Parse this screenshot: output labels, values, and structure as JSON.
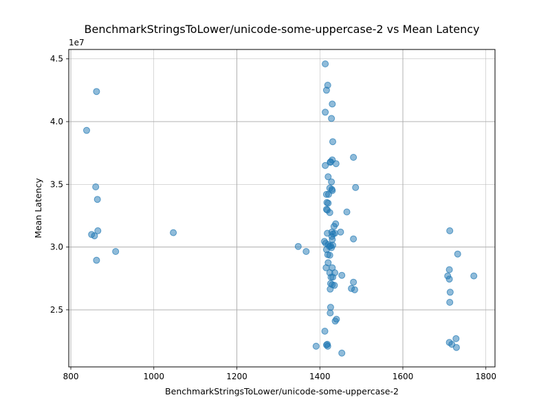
{
  "chart_data": {
    "type": "scatter",
    "title": "BenchmarkStringsToLower/unicode-some-uppercase-2 vs Mean Latency",
    "xlabel": "BenchmarkStringsToLower/unicode-some-uppercase-2",
    "ylabel": "Mean Latency",
    "y_offset_label": "1e7",
    "xlim": [
      795,
      1822
    ],
    "ylim": [
      20450000,
      45750000
    ],
    "x_ticks": [
      800,
      1000,
      1200,
      1400,
      1600,
      1800
    ],
    "x_tick_labels": [
      "800",
      "1000",
      "1200",
      "1400",
      "1600",
      "1800"
    ],
    "y_ticks": [
      25000000,
      30000000,
      35000000,
      40000000,
      45000000
    ],
    "y_tick_labels": [
      "2.5",
      "3.0",
      "3.5",
      "4.0",
      "4.5"
    ],
    "grid": true,
    "marker_color": "#1f77b4",
    "marker_alpha": 0.5,
    "series": [
      {
        "name": "",
        "points": [
          [
            838,
            39300000
          ],
          [
            862,
            42400000
          ],
          [
            860,
            34800000
          ],
          [
            864,
            33800000
          ],
          [
            850,
            31000000
          ],
          [
            857,
            30900000
          ],
          [
            865,
            31300000
          ],
          [
            862,
            28950000
          ],
          [
            908,
            29650000
          ],
          [
            1047,
            31150000
          ],
          [
            1348,
            30050000
          ],
          [
            1367,
            29650000
          ],
          [
            1391,
            22100000
          ],
          [
            1413,
            44600000
          ],
          [
            1419,
            42900000
          ],
          [
            1416,
            42500000
          ],
          [
            1413,
            40750000
          ],
          [
            1430,
            41400000
          ],
          [
            1428,
            40250000
          ],
          [
            1431,
            38400000
          ],
          [
            1430,
            36950000
          ],
          [
            1426,
            36800000
          ],
          [
            1425,
            36750000
          ],
          [
            1413,
            36500000
          ],
          [
            1439,
            36650000
          ],
          [
            1420,
            35600000
          ],
          [
            1428,
            35200000
          ],
          [
            1424,
            34700000
          ],
          [
            1429,
            34600000
          ],
          [
            1430,
            34500000
          ],
          [
            1416,
            34200000
          ],
          [
            1421,
            34200000
          ],
          [
            1417,
            33550000
          ],
          [
            1420,
            33500000
          ],
          [
            1416,
            33000000
          ],
          [
            1418,
            32950000
          ],
          [
            1424,
            32750000
          ],
          [
            1438,
            31850000
          ],
          [
            1434,
            31650000
          ],
          [
            1429,
            31200000
          ],
          [
            1418,
            31100000
          ],
          [
            1432,
            31050000
          ],
          [
            1436,
            31100000
          ],
          [
            1450,
            31200000
          ],
          [
            1429,
            30850000
          ],
          [
            1430,
            30600000
          ],
          [
            1411,
            30450000
          ],
          [
            1414,
            30300000
          ],
          [
            1420,
            30200000
          ],
          [
            1426,
            30100000
          ],
          [
            1431,
            30150000
          ],
          [
            1423,
            30050000
          ],
          [
            1428,
            29950000
          ],
          [
            1416,
            29800000
          ],
          [
            1419,
            29400000
          ],
          [
            1424,
            29350000
          ],
          [
            1420,
            28750000
          ],
          [
            1415,
            28350000
          ],
          [
            1430,
            28350000
          ],
          [
            1424,
            27950000
          ],
          [
            1436,
            27950000
          ],
          [
            1427,
            27600000
          ],
          [
            1431,
            27600000
          ],
          [
            1453,
            27750000
          ],
          [
            1426,
            27100000
          ],
          [
            1430,
            27000000
          ],
          [
            1435,
            26950000
          ],
          [
            1425,
            26650000
          ],
          [
            1426,
            25200000
          ],
          [
            1425,
            24750000
          ],
          [
            1440,
            24250000
          ],
          [
            1437,
            24100000
          ],
          [
            1412,
            23300000
          ],
          [
            1418,
            22250000
          ],
          [
            1416,
            22200000
          ],
          [
            1419,
            22100000
          ],
          [
            1453,
            21550000
          ],
          [
            1465,
            32800000
          ],
          [
            1481,
            37150000
          ],
          [
            1486,
            34750000
          ],
          [
            1481,
            30650000
          ],
          [
            1481,
            27200000
          ],
          [
            1476,
            26700000
          ],
          [
            1484,
            26600000
          ],
          [
            1713,
            31300000
          ],
          [
            1732,
            29450000
          ],
          [
            1712,
            28200000
          ],
          [
            1708,
            27700000
          ],
          [
            1712,
            27450000
          ],
          [
            1714,
            26400000
          ],
          [
            1713,
            25600000
          ],
          [
            1771,
            27700000
          ],
          [
            1712,
            22400000
          ],
          [
            1718,
            22250000
          ],
          [
            1728,
            22700000
          ],
          [
            1729,
            22000000
          ]
        ]
      }
    ]
  }
}
